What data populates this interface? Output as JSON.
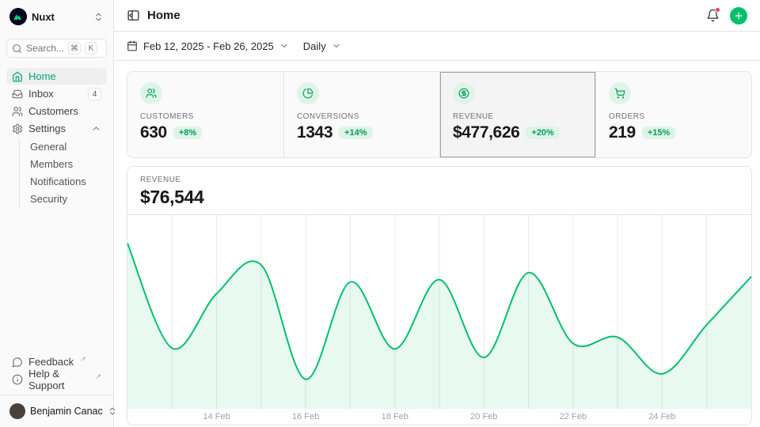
{
  "sidebar": {
    "workspace": {
      "name": "Nuxt"
    },
    "search": {
      "placeholder": "Search...",
      "kbd": [
        "⌘",
        "K"
      ]
    },
    "nav": [
      {
        "label": "Home"
      },
      {
        "label": "Inbox",
        "badge": "4"
      },
      {
        "label": "Customers"
      },
      {
        "label": "Settings"
      }
    ],
    "settings_children": [
      {
        "label": "General"
      },
      {
        "label": "Members"
      },
      {
        "label": "Notifications"
      },
      {
        "label": "Security"
      }
    ],
    "footer": [
      {
        "label": "Feedback",
        "external": "↗"
      },
      {
        "label": "Help & Support",
        "external": "↗"
      }
    ],
    "user": {
      "name": "Benjamin Canac"
    }
  },
  "header": {
    "title": "Home"
  },
  "toolbar": {
    "date_range": "Feb 12, 2025 - Feb 26, 2025",
    "interval": "Daily"
  },
  "stats": [
    {
      "label": "CUSTOMERS",
      "value": "630",
      "delta": "+8%",
      "icon": "users-icon"
    },
    {
      "label": "CONVERSIONS",
      "value": "1343",
      "delta": "+14%",
      "icon": "pie-chart-icon"
    },
    {
      "label": "REVENUE",
      "value": "$477,626",
      "delta": "+20%",
      "icon": "circle-dollar-icon"
    },
    {
      "label": "ORDERS",
      "value": "219",
      "delta": "+15%",
      "icon": "cart-icon"
    }
  ],
  "chart_data": {
    "type": "area",
    "title": "REVENUE",
    "current_value": "$76,544",
    "x": [
      "12 Feb",
      "13 Feb",
      "14 Feb",
      "15 Feb",
      "16 Feb",
      "17 Feb",
      "18 Feb",
      "19 Feb",
      "20 Feb",
      "21 Feb",
      "22 Feb",
      "23 Feb",
      "24 Feb",
      "25 Feb",
      "26 Feb"
    ],
    "values": [
      76544,
      28080,
      53280,
      66600,
      13680,
      58680,
      27720,
      59760,
      23760,
      63000,
      30240,
      33120,
      16200,
      38880,
      61200
    ],
    "x_tick_labels": [
      "14 Feb",
      "16 Feb",
      "18 Feb",
      "20 Feb",
      "22 Feb",
      "24 Feb"
    ],
    "x_tick_indices": [
      2,
      4,
      6,
      8,
      10,
      12
    ],
    "ylim": [
      0,
      89640
    ],
    "grid": "vertical-daily",
    "legend": "none",
    "line_color": "#00c16a",
    "fill_color": "rgba(0,193,106,0.09)",
    "grid_color": "#e8e8ea"
  },
  "colors": {
    "accent": "#00c16a",
    "notification": "#f43f5e",
    "border": "#e4e4e7"
  }
}
